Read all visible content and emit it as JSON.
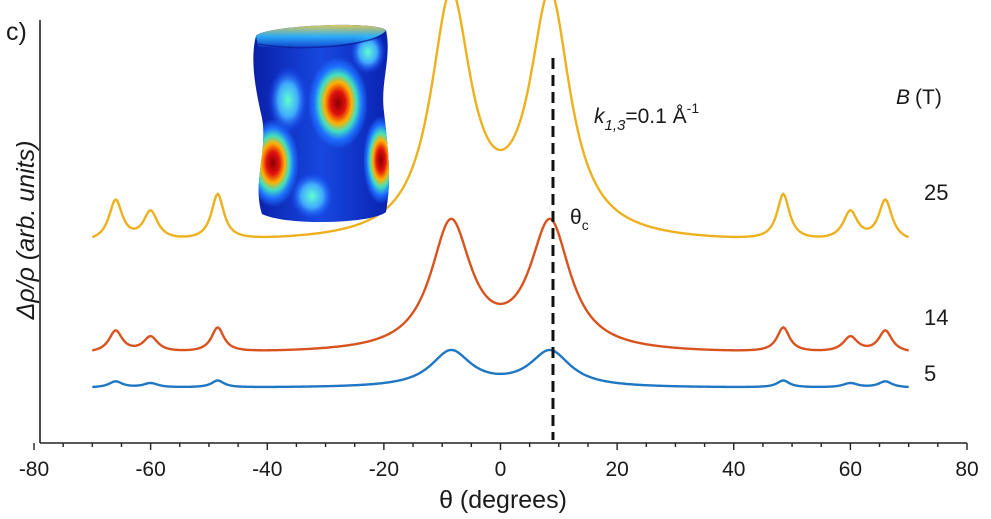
{
  "panel_label": "c)",
  "chart_data": {
    "type": "line",
    "title": "",
    "xlabel": "θ (degrees)",
    "ylabel": "Δρ/ρ (arb. units)",
    "xlim": [
      -80,
      80
    ],
    "xticks": [
      -80,
      -60,
      -40,
      -20,
      0,
      20,
      40,
      60,
      80
    ],
    "ylim": [
      0,
      1
    ],
    "grid": false,
    "legend_title": "B (T)",
    "legend_title_italic": "B",
    "legend_title_unit": "(T)",
    "annotation": {
      "k_symbol": "k",
      "k_subscript": "1,3",
      "k_value": "=0.1 Å",
      "k_superscript": "-1",
      "critical_angle_symbol": "θ",
      "critical_angle_subscript": "c",
      "critical_angle_deg": 9
    },
    "series": [
      {
        "name": "5",
        "field_T": 5,
        "color": "#1f77c4",
        "baseline": 0.13,
        "scale": 0.09
      },
      {
        "name": "14",
        "field_T": 14,
        "color": "#d9531e",
        "baseline": 0.21,
        "scale": 0.32
      },
      {
        "name": "25",
        "field_T": 25,
        "color": "#edb120",
        "baseline": 0.47,
        "scale": 0.6
      }
    ],
    "peak_positions_deg": [
      -66,
      -60,
      -48.5,
      -8.5,
      8.5,
      48.5,
      60,
      66
    ],
    "peak_heights_rel": [
      0.17,
      0.12,
      0.19,
      1.0,
      1.0,
      0.19,
      0.12,
      0.17
    ],
    "inset": "3D Fermi surface colormap"
  }
}
